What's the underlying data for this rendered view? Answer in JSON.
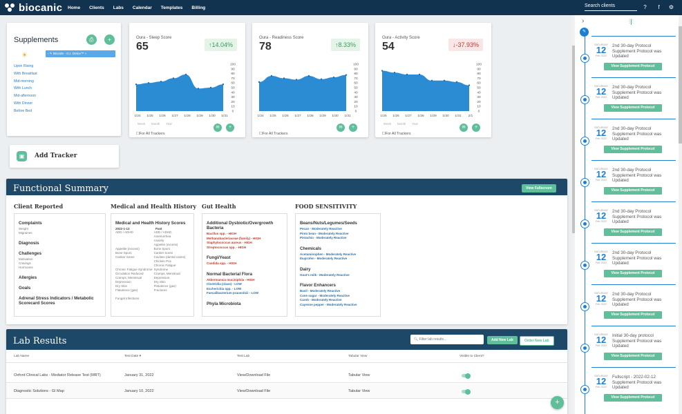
{
  "brand": "biocanic",
  "nav": [
    "Home",
    "Clients",
    "Labs",
    "Calendar",
    "Templates",
    "Billing"
  ],
  "search_placeholder": "Search clients",
  "supplements": {
    "title": "Supplements",
    "slots": [
      "Upon Rising",
      "With Breakfast",
      "Mid-morning",
      "With Lunch",
      "Mid-afternoon",
      "With Dinner",
      "Before Bed"
    ],
    "item": "Biocide - G.I. Detox™ +"
  },
  "metrics": [
    {
      "title": "Oura - Sleep Score",
      "value": "65",
      "change": "↑14.04%",
      "dir": "up",
      "yticks": [
        "100",
        "90",
        "80",
        "70",
        "60",
        "50",
        "40",
        "30",
        "20",
        "10",
        "0"
      ],
      "xticks": [
        "1/24",
        "1/25",
        "1/26",
        "1/27",
        "1/28",
        "1/29",
        "1/30",
        "1/31"
      ],
      "checkbox": "For All Trackers"
    },
    {
      "title": "Oura - Readiness Score",
      "value": "78",
      "change": "↑8.33%",
      "dir": "up",
      "yticks": [
        "100",
        "90",
        "80",
        "70",
        "60",
        "50",
        "40",
        "30",
        "20",
        "10",
        "0"
      ],
      "xticks": [
        "1/24",
        "1/25",
        "1/26",
        "1/27",
        "1/28",
        "1/29",
        "1/30",
        "1/31"
      ],
      "checkbox": "For All Trackers"
    },
    {
      "title": "Oura - Activity Score",
      "value": "54",
      "change": "↓-37.93%",
      "dir": "down",
      "yticks": [
        "100",
        "90",
        "80",
        "70",
        "60",
        "50",
        "40",
        "30",
        "20",
        "10",
        "0"
      ],
      "xticks": [
        "1/25",
        "1/26",
        "1/27",
        "1/28",
        "1/29",
        "1/30",
        "1/31",
        "2/1"
      ],
      "checkbox": "For All Trackers"
    }
  ],
  "chart_data": [
    {
      "type": "area",
      "title": "Oura - Sleep Score",
      "x": [
        "1/24",
        "1/25",
        "1/26",
        "1/27",
        "1/28",
        "1/29",
        "1/30",
        "1/31"
      ],
      "values": [
        57,
        60,
        63,
        70,
        78,
        48,
        50,
        57
      ],
      "ylim": [
        0,
        100
      ]
    },
    {
      "type": "area",
      "title": "Oura - Readiness Score",
      "x": [
        "1/24",
        "1/25",
        "1/26",
        "1/27",
        "1/28",
        "1/29",
        "1/30",
        "1/31"
      ],
      "values": [
        62,
        75,
        70,
        67,
        75,
        68,
        72,
        77
      ],
      "ylim": [
        0,
        100
      ]
    },
    {
      "type": "area",
      "title": "Oura - Activity Score",
      "x": [
        "1/25",
        "1/26",
        "1/27",
        "1/28",
        "1/29",
        "1/30",
        "1/31",
        "2/1"
      ],
      "values": [
        86,
        82,
        78,
        78,
        65,
        65,
        62,
        55
      ],
      "ylim": [
        0,
        100
      ]
    }
  ],
  "range_tabs": [
    "Week",
    "Month",
    "Year"
  ],
  "add_tracker": "Add Tracker",
  "functional": {
    "title": "Functional Summary",
    "btn": "View Fullscreen",
    "cols": [
      {
        "head": "Client Reported",
        "sections": [
          {
            "h": "Complaints",
            "items": [
              "Weight",
              "Migraines"
            ]
          },
          {
            "h": "Diagnosis",
            "items": []
          },
          {
            "h": "Challenges",
            "items": [
              "Motivation",
              "Cravings",
              "Hormones"
            ]
          },
          {
            "h": "Allergies",
            "items": []
          },
          {
            "h": "Goals",
            "items": []
          },
          {
            "h": "Adrenal Stress Indicators / Metabolic Scorecard Scores",
            "items": []
          }
        ]
      },
      {
        "head": "Medical and Health History",
        "sub": "Medical and Health History Scores",
        "date": "2022-1-13",
        "past": "Past",
        "left": [
          "ADD / ADHD",
          "",
          "",
          "",
          "Appetite (excess)",
          "Bone Spurs",
          "Canker Sores",
          "",
          "",
          "Chronic Fatigue Syndrome",
          "Circulation Reduced",
          "Cramps, Menstrual",
          "Depression",
          "Dry Skin",
          "Flatulence (gas)",
          "",
          "Fungal Infections"
        ],
        "right": [
          "ADD / ADHD",
          "Amenorrhea",
          "Anxiety",
          "Appetite (excess)",
          "Bone Spurs",
          "Canker Sores",
          "Cavities (dental caries)",
          "Chicken Pox",
          "Chronic Fatigue Syndrome",
          "",
          "Cramps, Menstrual",
          "Depression",
          "Dry Skin",
          "Flatulence (gas)",
          "Fractures"
        ]
      },
      {
        "head": "Gut Health",
        "sections": [
          {
            "h": "Additional Dysbiotic/Overgrowth Bacteria",
            "items": [
              [
                "Bacillus spp. - HIGH",
                "r"
              ],
              [
                "Methanobacteriaceae (family) - HIGH",
                "r"
              ],
              [
                "Staphylococcus aureus - HIGH",
                "r"
              ],
              [
                "Streptococcus spp. - HIGH",
                "r"
              ]
            ]
          },
          {
            "h": "Fungi/Yeast",
            "items": [
              [
                "Candida spp. - HIGH",
                "r"
              ]
            ]
          },
          {
            "h": "Normal Bacterial Flora",
            "items": [
              [
                "Akkermansia muciniphila - HIGH",
                "r"
              ],
              [
                "Clostridia (class) - LOW",
                "b"
              ],
              [
                "Escherichia spp. - LOW",
                "b"
              ],
              [
                "Faecalibacterium prausnitzii - LOW",
                "b"
              ]
            ]
          },
          {
            "h": "Phyla Microbiota",
            "items": []
          }
        ]
      },
      {
        "head": "FOOD SENSITIVITY",
        "sections": [
          {
            "h": "Beans/Nuts/Legumes/Seeds",
            "items": [
              "Pecan - Moderately Reactive",
              "Pinto bean - Moderately Reactive",
              "Pistachio - Moderately Reactive"
            ]
          },
          {
            "h": "Chemicals",
            "items": [
              "Acetaminophen - Moderately Reactive",
              "Ibuprofen - Moderately Reactive"
            ]
          },
          {
            "h": "Dairy",
            "items": [
              "Goat's milk - Moderately Reactive"
            ]
          },
          {
            "h": "Flavor Enhancers",
            "items": [
              "Basil - Moderately Reactive",
              "Cane sugar - Moderately Reactive",
              "Carob - Moderately Reactive",
              "Cayenne pepper - Moderately Reactive"
            ]
          }
        ]
      }
    ]
  },
  "labs": {
    "title": "Lab Results",
    "filter_placeholder": "Filter lab results...",
    "add_btn": "Add New Lab",
    "order_btn": "Order New Lab",
    "headers": [
      "Lab Name",
      "Test Date ▾",
      "Test Lab",
      "Tabular View",
      "Visible to Client?"
    ],
    "rows": [
      {
        "name": "Oxford Clinical Labs - Mediator Release Test (MRT)",
        "date": "January 31, 2022",
        "lab": "View/Download File",
        "tab": "Tabular View"
      },
      {
        "name": "Diagnostic Solutions - GI Map",
        "date": "January 10, 2022",
        "lab": "View/Download File",
        "tab": "Tabular View"
      }
    ]
  },
  "timeline": [
    {
      "day": "SATURDAY",
      "num": "12",
      "mon": "Feb 2022",
      "text": "2nd 30-day Protocol Supplement Protocol was Updated",
      "btn": "View Supplement Protocol"
    },
    {
      "day": "SATURDAY",
      "num": "12",
      "mon": "Feb 2022",
      "text": "2nd 30-day Protocol Supplement Protocol was Updated",
      "btn": "View Supplement Protocol"
    },
    {
      "day": "SATURDAY",
      "num": "12",
      "mon": "Feb 2022",
      "text": "2nd 30-day Protocol Supplement Protocol was Updated",
      "btn": "View Supplement Protocol"
    },
    {
      "day": "SATURDAY",
      "num": "12",
      "mon": "Feb 2022",
      "text": "2nd 30-day Protocol Supplement Protocol was Updated",
      "btn": "View Supplement Protocol"
    },
    {
      "day": "SATURDAY",
      "num": "12",
      "mon": "Feb 2022",
      "text": "2nd 30-day Protocol Supplement Protocol was Updated",
      "btn": "View Supplement Protocol"
    },
    {
      "day": "SATURDAY",
      "num": "12",
      "mon": "Feb 2022",
      "text": "2nd 30-day Protocol Supplement Protocol was Updated",
      "btn": "View Supplement Protocol"
    },
    {
      "day": "SATURDAY",
      "num": "12",
      "mon": "Feb 2022",
      "text": "2nd 30-day Protocol Supplement Protocol was Updated",
      "btn": "View Supplement Protocol"
    },
    {
      "day": "SATURDAY",
      "num": "12",
      "mon": "Feb 2022",
      "text": "Initial 30-day protocol Supplement Protocol was Updated",
      "btn": "View Supplement Protocol"
    },
    {
      "day": "SATURDAY",
      "num": "12",
      "mon": "Feb 2022",
      "text": "Fullscript - 2022-02-12 Supplement Protocol was Updated",
      "btn": "View Supplement Protocol"
    }
  ]
}
